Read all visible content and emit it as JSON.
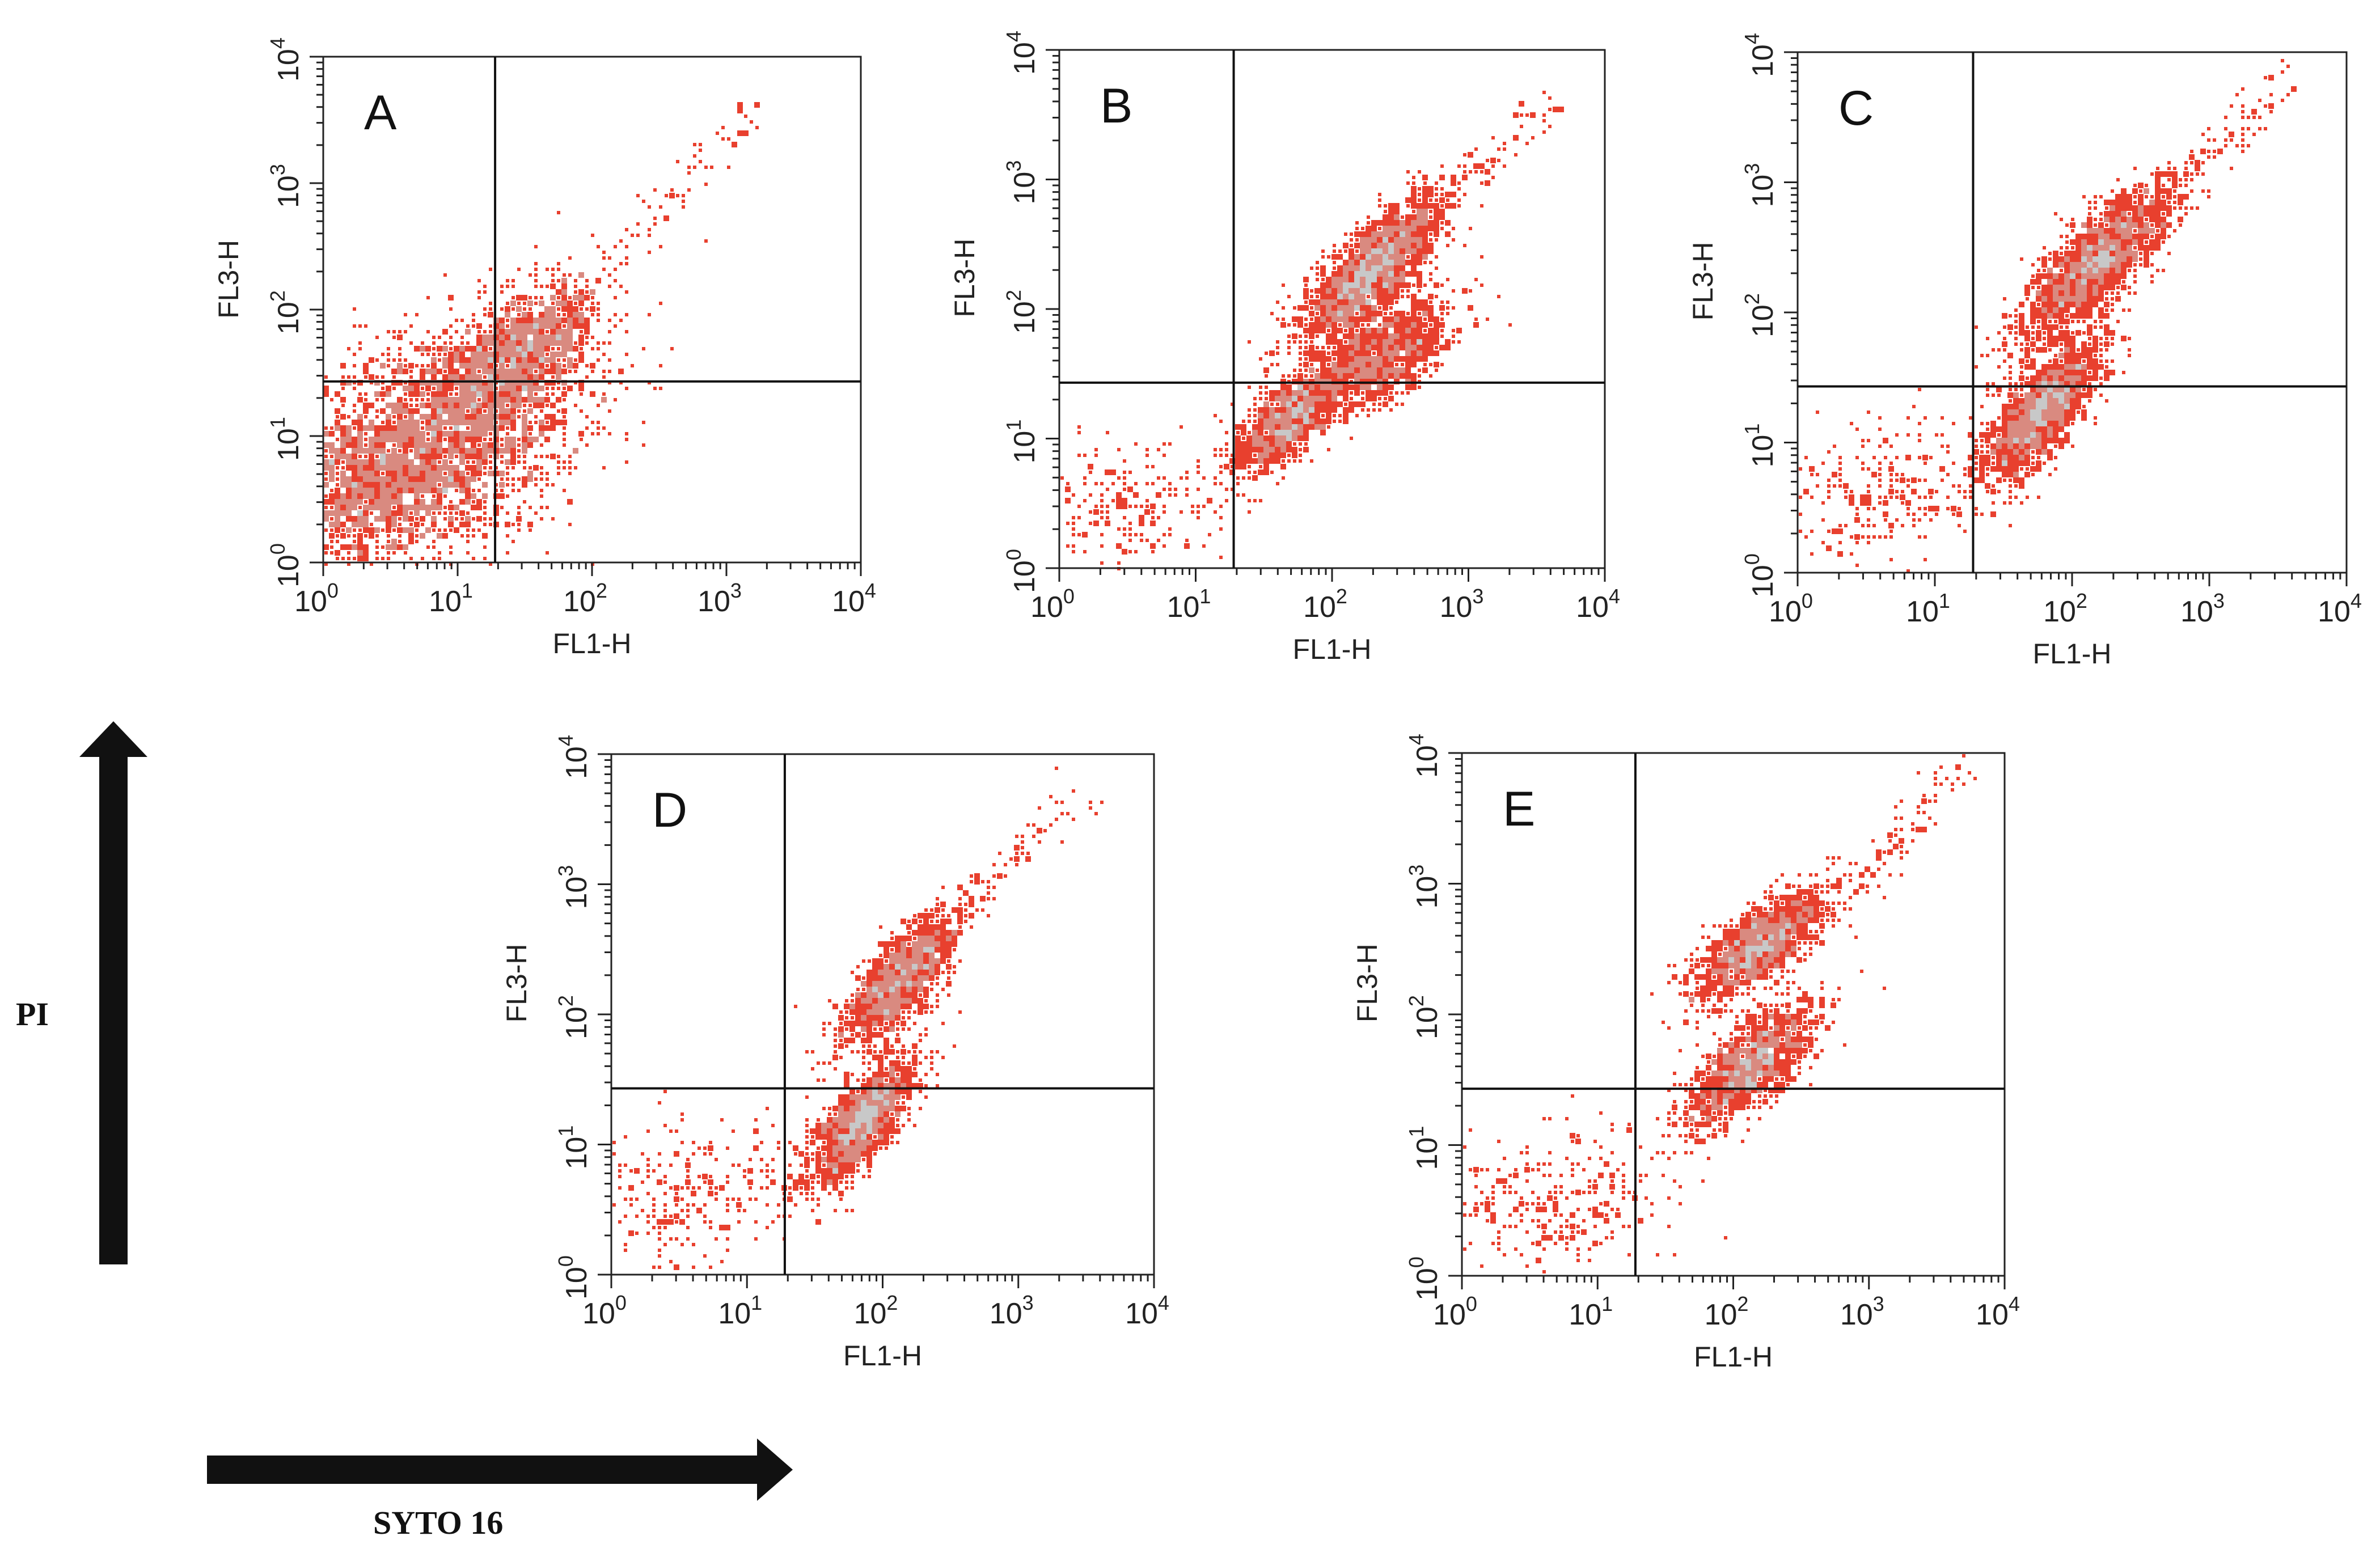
{
  "chart_data": {
    "type": "scatter",
    "description_type": "flow-cytometry density dot plots",
    "shared": {
      "xlabel": "FL1-H",
      "ylabel": "FL3-H",
      "xscale": "log",
      "yscale": "log",
      "xlim": [
        1,
        10000
      ],
      "ylim": [
        1,
        10000
      ],
      "tick_labels": [
        "10",
        "10",
        "10",
        "10",
        "10"
      ],
      "tick_exponents": [
        "0",
        "1",
        "2",
        "3",
        "4"
      ],
      "colors": {
        "sparse": "#e8402e",
        "medium": "#d98a80",
        "dense": "#c8c8c8"
      }
    },
    "panels": [
      {
        "label": "A",
        "gate_x": 19,
        "gate_y": 27,
        "clusters": [
          {
            "x": 7,
            "y": 9,
            "sx": 0.55,
            "sy": 0.48,
            "rho": 0.35,
            "n": 2600
          },
          {
            "x": 30,
            "y": 45,
            "sx": 0.3,
            "sy": 0.28,
            "rho": 0.6,
            "n": 900
          },
          {
            "x": 2,
            "y": 3,
            "sx": 0.25,
            "sy": 0.35,
            "rho": 0.1,
            "n": 500
          }
        ],
        "tail": {
          "from": [
            40,
            60
          ],
          "to": [
            2000,
            5000
          ],
          "n": 90
        }
      },
      {
        "label": "B",
        "gate_x": 19,
        "gate_y": 27,
        "clusters": [
          {
            "x": 200,
            "y": 200,
            "sx": 0.26,
            "sy": 0.28,
            "rho": 0.75,
            "n": 1700
          },
          {
            "x": 250,
            "y": 45,
            "sx": 0.24,
            "sy": 0.22,
            "rho": 0.6,
            "n": 900
          },
          {
            "x": 50,
            "y": 15,
            "sx": 0.22,
            "sy": 0.22,
            "rho": 0.7,
            "n": 1000
          },
          {
            "x": 3,
            "y": 3,
            "sx": 0.4,
            "sy": 0.25,
            "rho": 0.2,
            "n": 220
          }
        ],
        "tail": {
          "from": [
            400,
            500
          ],
          "to": [
            4000,
            4000
          ],
          "n": 80
        }
      },
      {
        "label": "C",
        "gate_x": 19,
        "gate_y": 27,
        "clusters": [
          {
            "x": 150,
            "y": 250,
            "sx": 0.28,
            "sy": 0.3,
            "rho": 0.8,
            "n": 1600
          },
          {
            "x": 60,
            "y": 18,
            "sx": 0.22,
            "sy": 0.28,
            "rho": 0.75,
            "n": 1500
          },
          {
            "x": 4,
            "y": 4,
            "sx": 0.4,
            "sy": 0.28,
            "rho": 0.25,
            "n": 260
          }
        ],
        "tail": {
          "from": [
            500,
            800
          ],
          "to": [
            4000,
            6000
          ],
          "n": 80
        }
      },
      {
        "label": "D",
        "gate_x": 19,
        "gate_y": 27,
        "clusters": [
          {
            "x": 130,
            "y": 180,
            "sx": 0.22,
            "sy": 0.26,
            "rho": 0.75,
            "n": 1200
          },
          {
            "x": 70,
            "y": 15,
            "sx": 0.2,
            "sy": 0.26,
            "rho": 0.75,
            "n": 1300
          },
          {
            "x": 4,
            "y": 4,
            "sx": 0.4,
            "sy": 0.3,
            "rho": 0.2,
            "n": 260
          }
        ],
        "tail": {
          "from": [
            300,
            600
          ],
          "to": [
            3500,
            5000
          ],
          "n": 70
        }
      },
      {
        "label": "E",
        "gate_x": 19,
        "gate_y": 27,
        "clusters": [
          {
            "x": 160,
            "y": 350,
            "sx": 0.26,
            "sy": 0.22,
            "rho": 0.75,
            "n": 1200
          },
          {
            "x": 130,
            "y": 40,
            "sx": 0.24,
            "sy": 0.24,
            "rho": 0.7,
            "n": 1200
          },
          {
            "x": 5,
            "y": 4,
            "sx": 0.45,
            "sy": 0.28,
            "rho": 0.15,
            "n": 300
          }
        ],
        "tail": {
          "from": [
            800,
            1000
          ],
          "to": [
            5000,
            8000
          ],
          "n": 80
        }
      }
    ]
  },
  "annotations": {
    "y_arrow_label": "PI",
    "x_arrow_label": "SYTO 16"
  }
}
